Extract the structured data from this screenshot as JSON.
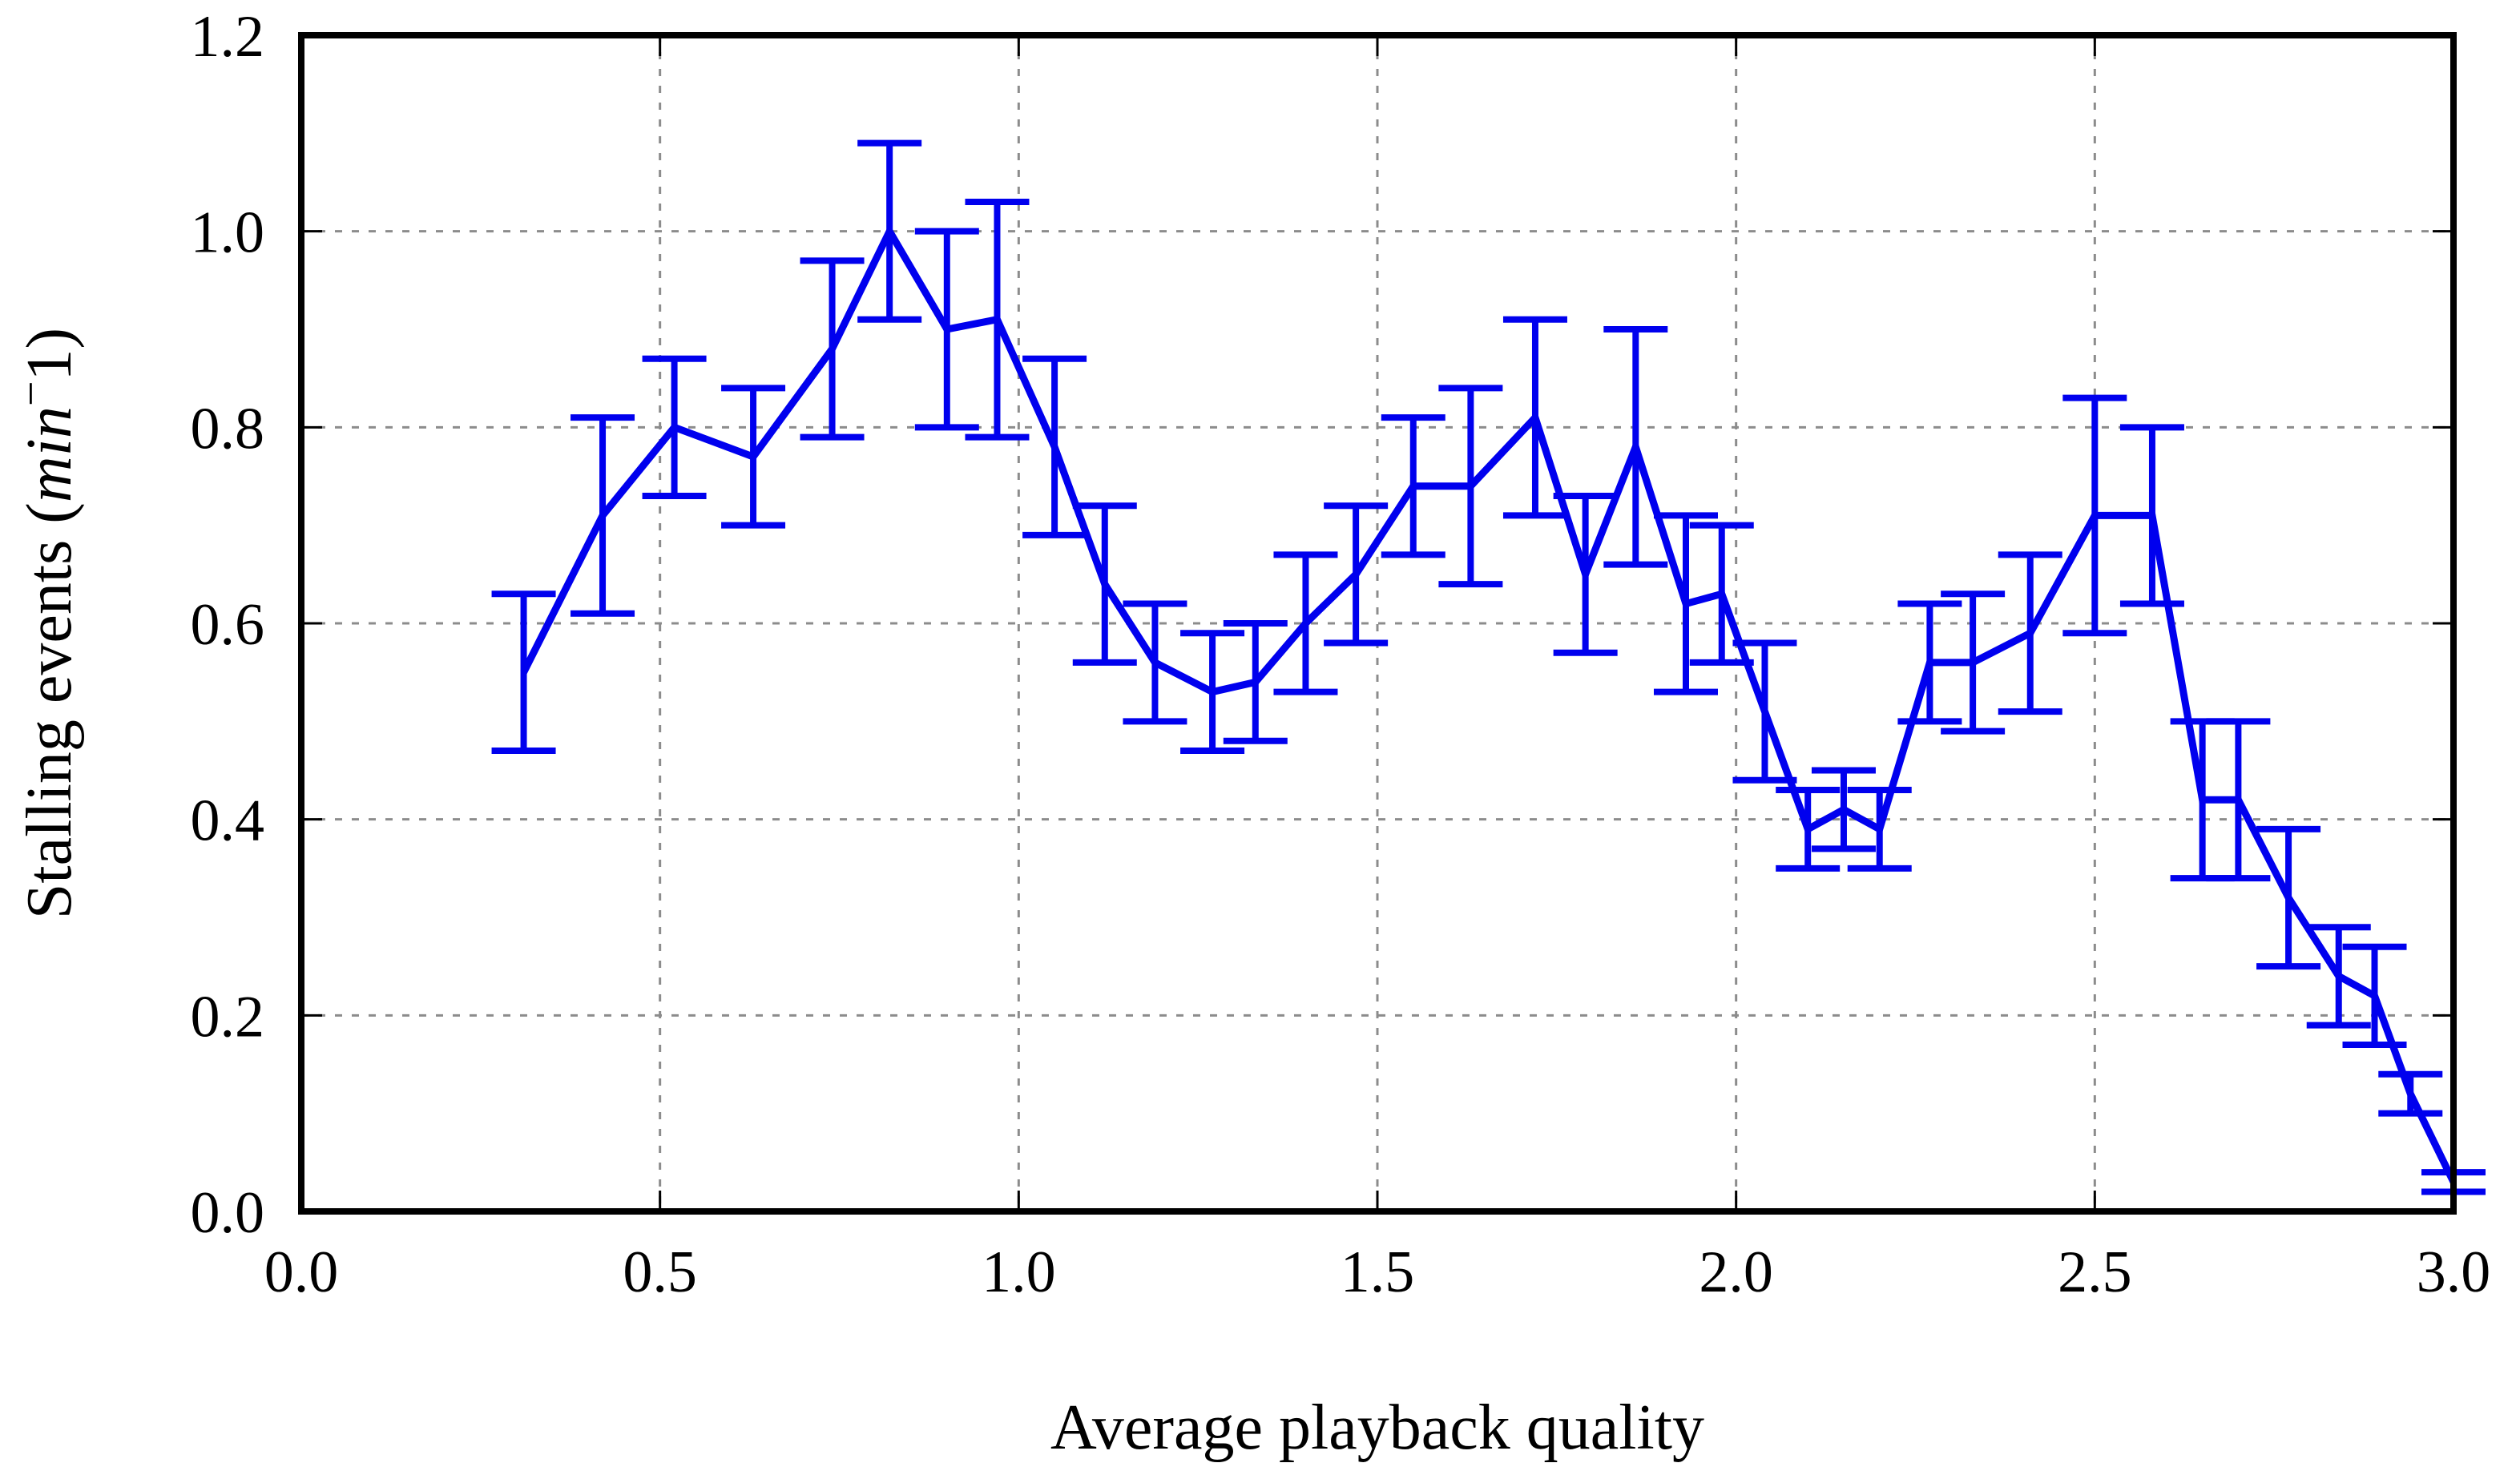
{
  "chart_data": {
    "type": "line",
    "title": "",
    "xlabel": "Average playback quality",
    "ylabel": "Stalling events (",
    "ylabel_unit_base": "min",
    "ylabel_unit_sup": "−",
    "ylabel_unit_tail": "1)",
    "xlim": [
      0.0,
      3.0
    ],
    "ylim": [
      0.0,
      1.2
    ],
    "xticks": [
      "0.0",
      "0.5",
      "1.0",
      "1.5",
      "2.0",
      "2.5",
      "3.0"
    ],
    "yticks": [
      "0.0",
      "0.2",
      "0.4",
      "0.6",
      "0.8",
      "1.0",
      "1.2"
    ],
    "grid": true,
    "series": [
      {
        "color": "#0000ee",
        "x": [
          0.31,
          0.42,
          0.52,
          0.63,
          0.74,
          0.82,
          0.9,
          0.97,
          1.05,
          1.12,
          1.19,
          1.27,
          1.33,
          1.4,
          1.47,
          1.55,
          1.63,
          1.72,
          1.79,
          1.86,
          1.93,
          1.98,
          2.04,
          2.1,
          2.15,
          2.2,
          2.27,
          2.33,
          2.41,
          2.5,
          2.58,
          2.65,
          2.7,
          2.77,
          2.84,
          2.89,
          2.94,
          3.0
        ],
        "y": [
          0.55,
          0.71,
          0.8,
          0.77,
          0.88,
          1.0,
          0.9,
          0.91,
          0.78,
          0.64,
          0.56,
          0.53,
          0.54,
          0.6,
          0.65,
          0.74,
          0.74,
          0.81,
          0.65,
          0.78,
          0.62,
          0.63,
          0.51,
          0.39,
          0.41,
          0.39,
          0.56,
          0.56,
          0.59,
          0.71,
          0.71,
          0.42,
          0.42,
          0.32,
          0.24,
          0.22,
          0.12,
          0.03
        ],
        "err": [
          0.08,
          0.1,
          0.07,
          0.07,
          0.09,
          0.09,
          0.1,
          0.12,
          0.09,
          0.08,
          0.06,
          0.06,
          0.06,
          0.07,
          0.07,
          0.07,
          0.1,
          0.1,
          0.08,
          0.12,
          0.09,
          0.07,
          0.07,
          0.04,
          0.04,
          0.04,
          0.06,
          0.07,
          0.08,
          0.12,
          0.09,
          0.08,
          0.08,
          0.07,
          0.05,
          0.05,
          0.02,
          0.01
        ]
      }
    ]
  }
}
